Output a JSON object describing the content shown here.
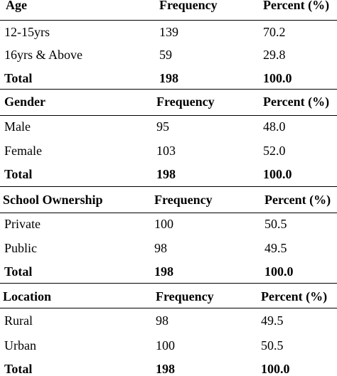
{
  "sections": [
    {
      "header": [
        "Age",
        "Frequency",
        "Percent (%)"
      ],
      "rows": [
        [
          "12-15yrs",
          "139",
          "70.2"
        ],
        [
          "16yrs & Above",
          "59",
          "29.8"
        ]
      ],
      "total": [
        "Total",
        "198",
        "100.0"
      ]
    },
    {
      "header": [
        "Gender",
        "Frequency",
        "Percent (%)"
      ],
      "rows": [
        [
          "Male",
          "95",
          "48.0"
        ],
        [
          "Female",
          "103",
          "52.0"
        ]
      ],
      "total": [
        "Total",
        "198",
        "100.0"
      ]
    },
    {
      "header": [
        "School Ownership",
        "Frequency",
        "Percent (%)"
      ],
      "rows": [
        [
          "Private",
          "100",
          "50.5"
        ],
        [
          "Public",
          "98",
          "49.5"
        ]
      ],
      "total": [
        "Total",
        "198",
        "100.0"
      ]
    },
    {
      "header": [
        "Location",
        "Frequency",
        "Percent (%)"
      ],
      "rows": [
        [
          "Rural",
          "98",
          "49.5"
        ],
        [
          "Urban",
          "100",
          "50.5"
        ]
      ],
      "total": [
        "Total",
        "198",
        "100.0"
      ]
    }
  ]
}
